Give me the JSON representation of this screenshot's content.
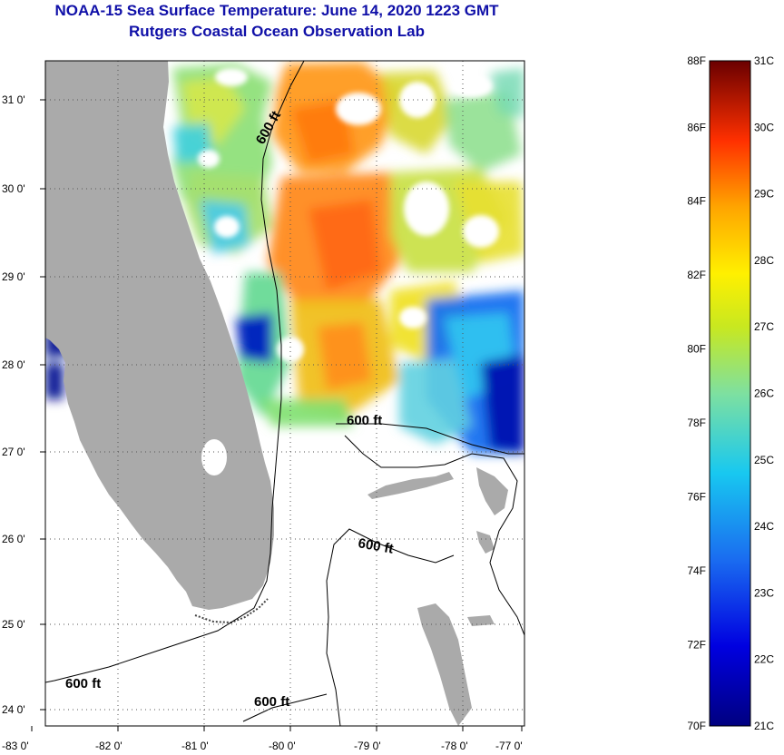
{
  "title": "NOAA-15 Sea Surface Temperature:  June 14, 2020 1223 GMT",
  "subtitle": "Rutgers Coastal Ocean Observation Lab",
  "lon_ticks": [
    "-83 0'",
    "-82 0'",
    "-81 0'",
    "-80 0'",
    "-79 0'",
    "-78 0'",
    "-77 0'"
  ],
  "lat_ticks": [
    "31 0'",
    "30 0'",
    "29 0'",
    "28 0'",
    "27 0'",
    "26 0'",
    "25 0'",
    "24 0'"
  ],
  "contour_labels": [
    "600 ft",
    "600 ft",
    "600 ft",
    "600 ft",
    "600 ft"
  ],
  "colorbar": {
    "fahrenheit": [
      "88F",
      "86F",
      "84F",
      "82F",
      "80F",
      "78F",
      "76F",
      "74F",
      "72F",
      "70F"
    ],
    "celsius": [
      "31C",
      "30C",
      "29C",
      "28C",
      "27C",
      "26C",
      "25C",
      "24C",
      "23C",
      "22C",
      "21C"
    ],
    "min_c": 21,
    "max_c": 31
  },
  "colors": {
    "land": "#aaaaaa",
    "title": "#1010a8",
    "grid": "#555555"
  }
}
